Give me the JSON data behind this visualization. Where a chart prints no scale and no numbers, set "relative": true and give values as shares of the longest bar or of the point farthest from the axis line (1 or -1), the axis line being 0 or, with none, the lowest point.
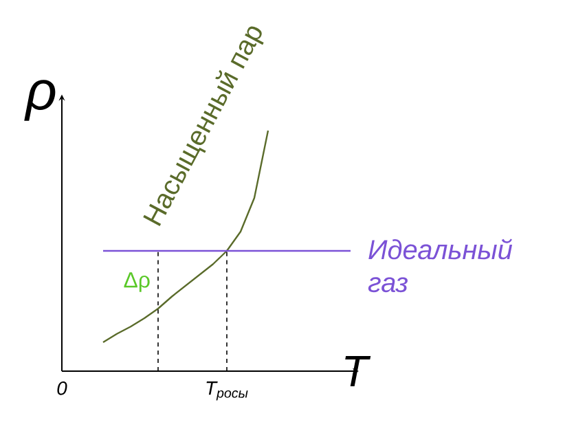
{
  "chart_data": {
    "type": "line",
    "relative": true,
    "ylabel": "ρ",
    "xlabel": "T",
    "categories": [
      "0",
      null,
      null,
      null,
      null,
      null,
      null,
      null,
      null,
      null,
      null,
      null,
      "T$_{росы}$",
      null,
      null,
      null,
      null,
      null,
      null,
      null,
      null,
      null
    ],
    "marker": "none",
    "line_style": "solid",
    "grid": false,
    "series": [
      {
        "name": "Насыщенный пар",
        "color": "#5a6b2a",
        "values": [
          null,
          null,
          null,
          0.12,
          0.155,
          0.185,
          0.22,
          0.26,
          0.31,
          0.355,
          0.4,
          0.445,
          0.5,
          0.58,
          0.72,
          1,
          null,
          null,
          null,
          null,
          null,
          null
        ]
      },
      {
        "name": "Идеальный газ",
        "color": "#7b52d6",
        "values": [
          null,
          null,
          null,
          0.5,
          0.5,
          0.5,
          0.5,
          0.5,
          0.5,
          0.5,
          0.5,
          0.5,
          0.5,
          0.5,
          0.5,
          0.5,
          0.5,
          0.5,
          0.5,
          0.5,
          0.5,
          0.5
        ]
      }
    ],
    "ref_lines": [
      {
        "axis": "x",
        "value": "T$_{росы}$",
        "line_style": "dashed"
      }
    ],
    "annotations": [
      "Δρ"
    ]
  }
}
